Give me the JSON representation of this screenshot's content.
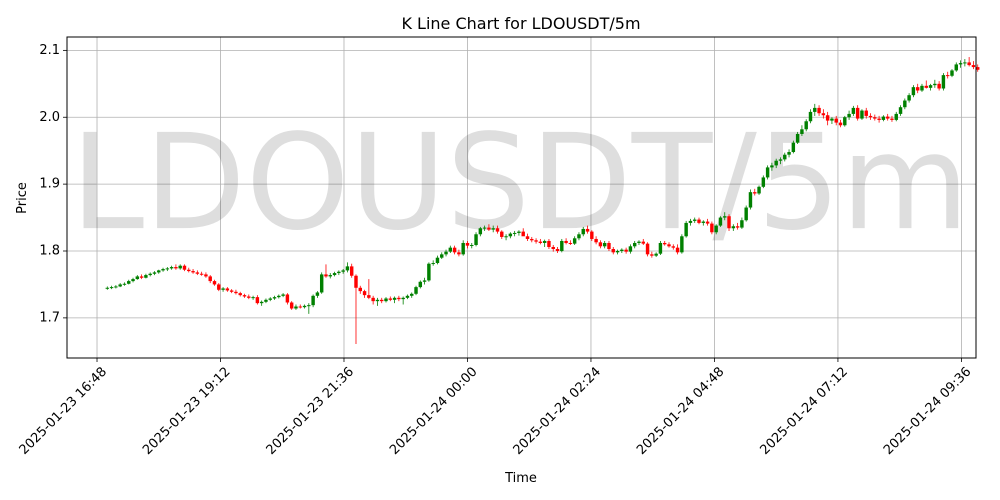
{
  "chart_data": {
    "type": "candlestick",
    "title": "K Line Chart for LDOUSDT/5m",
    "watermark": "LDOUSDT/5m",
    "xlabel": "Time",
    "ylabel": "Price",
    "y_ticks": [
      "1.7",
      "1.8",
      "1.9",
      "2.0",
      "2.1"
    ],
    "y_tick_values": [
      1.7,
      1.8,
      1.9,
      2.0,
      2.1
    ],
    "ylim": [
      1.64,
      2.12
    ],
    "x_ticks": [
      "2025-01-23 16:48",
      "2025-01-23 19:12",
      "2025-01-23 21:36",
      "2025-01-24 00:00",
      "2025-01-24 02:24",
      "2025-01-24 04:48",
      "2025-01-24 07:12",
      "2025-01-24 09:36"
    ],
    "xlim_minutes_from_first_tick": [
      -35,
      1025
    ],
    "grid": true,
    "colors": {
      "up": "#008000",
      "down": "#ff0000"
    },
    "candle_interval_minutes": 5,
    "first_candle": "2025-01-23 17:00",
    "candles": [
      [
        1.745,
        1.747,
        1.742,
        1.745
      ],
      [
        1.745,
        1.748,
        1.743,
        1.746
      ],
      [
        1.746,
        1.749,
        1.744,
        1.747
      ],
      [
        1.747,
        1.752,
        1.746,
        1.75
      ],
      [
        1.75,
        1.753,
        1.748,
        1.751
      ],
      [
        1.751,
        1.757,
        1.75,
        1.755
      ],
      [
        1.755,
        1.76,
        1.753,
        1.758
      ],
      [
        1.758,
        1.764,
        1.757,
        1.762
      ],
      [
        1.762,
        1.765,
        1.758,
        1.76
      ],
      [
        1.76,
        1.766,
        1.759,
        1.764
      ],
      [
        1.764,
        1.768,
        1.762,
        1.766
      ],
      [
        1.766,
        1.77,
        1.764,
        1.768
      ],
      [
        1.768,
        1.772,
        1.766,
        1.771
      ],
      [
        1.771,
        1.775,
        1.769,
        1.773
      ],
      [
        1.773,
        1.776,
        1.77,
        1.774
      ],
      [
        1.774,
        1.778,
        1.772,
        1.776
      ],
      [
        1.776,
        1.78,
        1.772,
        1.774
      ],
      [
        1.774,
        1.78,
        1.772,
        1.778
      ],
      [
        1.778,
        1.78,
        1.77,
        1.772
      ],
      [
        1.772,
        1.775,
        1.768,
        1.77
      ],
      [
        1.77,
        1.773,
        1.766,
        1.768
      ],
      [
        1.768,
        1.771,
        1.764,
        1.766
      ],
      [
        1.766,
        1.769,
        1.763,
        1.765
      ],
      [
        1.765,
        1.768,
        1.76,
        1.762
      ],
      [
        1.762,
        1.764,
        1.752,
        1.755
      ],
      [
        1.755,
        1.757,
        1.748,
        1.75
      ],
      [
        1.75,
        1.752,
        1.74,
        1.742
      ],
      [
        1.742,
        1.746,
        1.739,
        1.744
      ],
      [
        1.744,
        1.746,
        1.739,
        1.741
      ],
      [
        1.741,
        1.743,
        1.737,
        1.739
      ],
      [
        1.739,
        1.742,
        1.735,
        1.737
      ],
      [
        1.737,
        1.739,
        1.732,
        1.734
      ],
      [
        1.734,
        1.736,
        1.73,
        1.732
      ],
      [
        1.732,
        1.735,
        1.728,
        1.73
      ],
      [
        1.73,
        1.733,
        1.727,
        1.731
      ],
      [
        1.731,
        1.734,
        1.72,
        1.722
      ],
      [
        1.722,
        1.726,
        1.718,
        1.724
      ],
      [
        1.724,
        1.729,
        1.722,
        1.727
      ],
      [
        1.727,
        1.731,
        1.725,
        1.729
      ],
      [
        1.729,
        1.733,
        1.727,
        1.731
      ],
      [
        1.731,
        1.735,
        1.729,
        1.733
      ],
      [
        1.733,
        1.737,
        1.731,
        1.735
      ],
      [
        1.735,
        1.737,
        1.72,
        1.723
      ],
      [
        1.723,
        1.725,
        1.712,
        1.714
      ],
      [
        1.714,
        1.72,
        1.712,
        1.717
      ],
      [
        1.717,
        1.72,
        1.714,
        1.716
      ],
      [
        1.716,
        1.72,
        1.714,
        1.718
      ],
      [
        1.718,
        1.722,
        1.706,
        1.719
      ],
      [
        1.719,
        1.735,
        1.716,
        1.733
      ],
      [
        1.733,
        1.74,
        1.73,
        1.738
      ],
      [
        1.738,
        1.768,
        1.736,
        1.765
      ],
      [
        1.765,
        1.78,
        1.76,
        1.762
      ],
      [
        1.762,
        1.767,
        1.759,
        1.764
      ],
      [
        1.764,
        1.769,
        1.762,
        1.767
      ],
      [
        1.767,
        1.771,
        1.764,
        1.769
      ],
      [
        1.769,
        1.773,
        1.766,
        1.771
      ],
      [
        1.771,
        1.783,
        1.768,
        1.777
      ],
      [
        1.777,
        1.781,
        1.76,
        1.763
      ],
      [
        1.763,
        1.765,
        1.661,
        1.745
      ],
      [
        1.745,
        1.748,
        1.736,
        1.74
      ],
      [
        1.74,
        1.742,
        1.73,
        1.734
      ],
      [
        1.734,
        1.758,
        1.728,
        1.73
      ],
      [
        1.73,
        1.733,
        1.72,
        1.725
      ],
      [
        1.725,
        1.73,
        1.718,
        1.727
      ],
      [
        1.727,
        1.73,
        1.722,
        1.725
      ],
      [
        1.725,
        1.731,
        1.723,
        1.729
      ],
      [
        1.729,
        1.732,
        1.725,
        1.727
      ],
      [
        1.727,
        1.732,
        1.722,
        1.73
      ],
      [
        1.73,
        1.733,
        1.725,
        1.728
      ],
      [
        1.728,
        1.732,
        1.72,
        1.73
      ],
      [
        1.73,
        1.735,
        1.728,
        1.733
      ],
      [
        1.733,
        1.738,
        1.73,
        1.736
      ],
      [
        1.736,
        1.748,
        1.734,
        1.746
      ],
      [
        1.746,
        1.756,
        1.744,
        1.754
      ],
      [
        1.754,
        1.76,
        1.75,
        1.756
      ],
      [
        1.756,
        1.783,
        1.754,
        1.781
      ],
      [
        1.781,
        1.786,
        1.778,
        1.782
      ],
      [
        1.782,
        1.793,
        1.78,
        1.79
      ],
      [
        1.79,
        1.798,
        1.788,
        1.795
      ],
      [
        1.795,
        1.802,
        1.792,
        1.799
      ],
      [
        1.799,
        1.808,
        1.797,
        1.805
      ],
      [
        1.805,
        1.808,
        1.795,
        1.798
      ],
      [
        1.798,
        1.802,
        1.792,
        1.795
      ],
      [
        1.795,
        1.816,
        1.793,
        1.812
      ],
      [
        1.812,
        1.815,
        1.804,
        1.808
      ],
      [
        1.808,
        1.812,
        1.804,
        1.809
      ],
      [
        1.809,
        1.828,
        1.807,
        1.825
      ],
      [
        1.825,
        1.836,
        1.822,
        1.834
      ],
      [
        1.834,
        1.838,
        1.83,
        1.835
      ],
      [
        1.835,
        1.84,
        1.83,
        1.832
      ],
      [
        1.832,
        1.838,
        1.828,
        1.834
      ],
      [
        1.834,
        1.838,
        1.826,
        1.829
      ],
      [
        1.829,
        1.831,
        1.818,
        1.821
      ],
      [
        1.821,
        1.825,
        1.816,
        1.822
      ],
      [
        1.822,
        1.828,
        1.819,
        1.826
      ],
      [
        1.826,
        1.83,
        1.822,
        1.827
      ],
      [
        1.827,
        1.831,
        1.823,
        1.829
      ],
      [
        1.829,
        1.834,
        1.825,
        1.822
      ],
      [
        1.822,
        1.826,
        1.815,
        1.818
      ],
      [
        1.818,
        1.821,
        1.813,
        1.816
      ],
      [
        1.816,
        1.819,
        1.811,
        1.814
      ],
      [
        1.814,
        1.818,
        1.81,
        1.812
      ],
      [
        1.812,
        1.817,
        1.806,
        1.815
      ],
      [
        1.815,
        1.818,
        1.803,
        1.806
      ],
      [
        1.806,
        1.809,
        1.799,
        1.803
      ],
      [
        1.803,
        1.806,
        1.797,
        1.8
      ],
      [
        1.8,
        1.818,
        1.798,
        1.815
      ],
      [
        1.815,
        1.819,
        1.81,
        1.812
      ],
      [
        1.812,
        1.816,
        1.809,
        1.811
      ],
      [
        1.811,
        1.822,
        1.809,
        1.819
      ],
      [
        1.819,
        1.828,
        1.816,
        1.825
      ],
      [
        1.825,
        1.836,
        1.822,
        1.833
      ],
      [
        1.833,
        1.838,
        1.826,
        1.829
      ],
      [
        1.829,
        1.831,
        1.815,
        1.818
      ],
      [
        1.818,
        1.822,
        1.81,
        1.813
      ],
      [
        1.813,
        1.816,
        1.804,
        1.807
      ],
      [
        1.807,
        1.815,
        1.804,
        1.812
      ],
      [
        1.812,
        1.815,
        1.8,
        1.803
      ],
      [
        1.803,
        1.806,
        1.795,
        1.798
      ],
      [
        1.798,
        1.802,
        1.795,
        1.8
      ],
      [
        1.8,
        1.804,
        1.797,
        1.802
      ],
      [
        1.802,
        1.805,
        1.796,
        1.799
      ],
      [
        1.799,
        1.81,
        1.796,
        1.807
      ],
      [
        1.807,
        1.815,
        1.804,
        1.812
      ],
      [
        1.812,
        1.816,
        1.809,
        1.814
      ],
      [
        1.814,
        1.818,
        1.809,
        1.811
      ],
      [
        1.811,
        1.813,
        1.792,
        1.795
      ],
      [
        1.795,
        1.799,
        1.79,
        1.793
      ],
      [
        1.793,
        1.798,
        1.791,
        1.796
      ],
      [
        1.796,
        1.815,
        1.794,
        1.812
      ],
      [
        1.812,
        1.815,
        1.808,
        1.81
      ],
      [
        1.81,
        1.813,
        1.805,
        1.807
      ],
      [
        1.807,
        1.81,
        1.802,
        1.805
      ],
      [
        1.805,
        1.81,
        1.795,
        1.798
      ],
      [
        1.798,
        1.825,
        1.796,
        1.822
      ],
      [
        1.822,
        1.845,
        1.82,
        1.842
      ],
      [
        1.842,
        1.848,
        1.838,
        1.845
      ],
      [
        1.845,
        1.85,
        1.842,
        1.847
      ],
      [
        1.847,
        1.85,
        1.84,
        1.842
      ],
      [
        1.842,
        1.846,
        1.838,
        1.844
      ],
      [
        1.844,
        1.848,
        1.838,
        1.841
      ],
      [
        1.841,
        1.844,
        1.825,
        1.828
      ],
      [
        1.828,
        1.84,
        1.825,
        1.838
      ],
      [
        1.838,
        1.852,
        1.836,
        1.85
      ],
      [
        1.85,
        1.858,
        1.846,
        1.852
      ],
      [
        1.852,
        1.855,
        1.83,
        1.834
      ],
      [
        1.834,
        1.84,
        1.83,
        1.837
      ],
      [
        1.837,
        1.842,
        1.832,
        1.835
      ],
      [
        1.835,
        1.85,
        1.833,
        1.846
      ],
      [
        1.846,
        1.868,
        1.844,
        1.865
      ],
      [
        1.865,
        1.892,
        1.862,
        1.888
      ],
      [
        1.888,
        1.893,
        1.883,
        1.886
      ],
      [
        1.886,
        1.898,
        1.884,
        1.896
      ],
      [
        1.896,
        1.913,
        1.894,
        1.91
      ],
      [
        1.91,
        1.928,
        1.907,
        1.925
      ],
      [
        1.925,
        1.932,
        1.92,
        1.928
      ],
      [
        1.928,
        1.938,
        1.924,
        1.935
      ],
      [
        1.935,
        1.94,
        1.93,
        1.937
      ],
      [
        1.937,
        1.947,
        1.934,
        1.944
      ],
      [
        1.944,
        1.952,
        1.94,
        1.948
      ],
      [
        1.948,
        1.965,
        1.946,
        1.962
      ],
      [
        1.962,
        1.978,
        1.96,
        1.975
      ],
      [
        1.975,
        1.988,
        1.972,
        1.982
      ],
      [
        1.982,
        1.997,
        1.979,
        1.994
      ],
      [
        1.994,
        2.012,
        1.991,
        2.008
      ],
      [
        2.008,
        2.02,
        2.002,
        2.014
      ],
      [
        2.014,
        2.018,
        2.002,
        2.006
      ],
      [
        2.006,
        2.012,
        1.998,
        2.003
      ],
      [
        2.003,
        2.008,
        1.988,
        1.995
      ],
      [
        1.995,
        2.0,
        1.99,
        1.998
      ],
      [
        1.998,
        2.002,
        1.988,
        1.992
      ],
      [
        1.992,
        1.996,
        1.985,
        1.988
      ],
      [
        1.988,
        2.002,
        1.986,
        2.0
      ],
      [
        2.0,
        2.01,
        1.996,
        2.005
      ],
      [
        2.005,
        2.017,
        2.002,
        2.014
      ],
      [
        2.014,
        2.018,
        1.995,
        1.998
      ],
      [
        1.998,
        2.012,
        1.996,
        2.01
      ],
      [
        2.01,
        2.014,
        1.998,
        2.002
      ],
      [
        2.002,
        2.006,
        1.996,
        2.0
      ],
      [
        2.0,
        2.004,
        1.995,
        1.998
      ],
      [
        1.998,
        2.002,
        1.992,
        1.996
      ],
      [
        1.996,
        2.003,
        1.994,
        2.001
      ],
      [
        2.001,
        2.005,
        1.995,
        1.998
      ],
      [
        1.998,
        2.002,
        1.993,
        1.996
      ],
      [
        1.996,
        2.008,
        1.994,
        2.005
      ],
      [
        2.005,
        2.018,
        2.002,
        2.015
      ],
      [
        2.015,
        2.028,
        2.012,
        2.025
      ],
      [
        2.025,
        2.036,
        2.022,
        2.033
      ],
      [
        2.033,
        2.048,
        2.03,
        2.045
      ],
      [
        2.045,
        2.05,
        2.036,
        2.04
      ],
      [
        2.04,
        2.05,
        2.038,
        2.047
      ],
      [
        2.047,
        2.055,
        2.043,
        2.044
      ],
      [
        2.044,
        2.05,
        2.04,
        2.048
      ],
      [
        2.048,
        2.056,
        2.044,
        2.05
      ],
      [
        2.05,
        2.054,
        2.04,
        2.043
      ],
      [
        2.043,
        2.066,
        2.04,
        2.063
      ],
      [
        2.063,
        2.068,
        2.058,
        2.062
      ],
      [
        2.062,
        2.072,
        2.06,
        2.07
      ],
      [
        2.07,
        2.082,
        2.068,
        2.079
      ],
      [
        2.079,
        2.085,
        2.074,
        2.081
      ],
      [
        2.081,
        2.087,
        2.076,
        2.082
      ],
      [
        2.082,
        2.09,
        2.076,
        2.078
      ],
      [
        2.078,
        2.084,
        2.072,
        2.075
      ],
      [
        2.075,
        2.079,
        2.068,
        2.071
      ]
    ]
  }
}
